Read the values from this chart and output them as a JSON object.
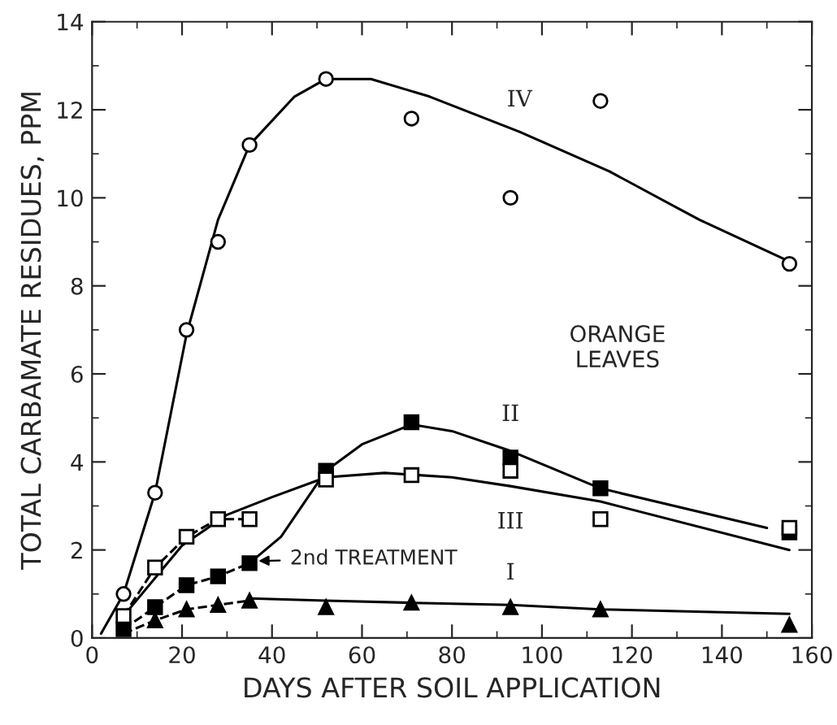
{
  "chart_data": {
    "type": "scatter",
    "xlabel": "DAYS AFTER SOIL APPLICATION",
    "ylabel": "TOTAL CARBAMATE RESIDUES, PPM",
    "xlim": [
      0,
      160
    ],
    "xticks": [
      0,
      20,
      40,
      60,
      80,
      100,
      120,
      140,
      160
    ],
    "ylim": [
      0,
      14
    ],
    "yticks": [
      0,
      2,
      4,
      6,
      8,
      10,
      12,
      14
    ],
    "grid": false,
    "legend": false,
    "series": [
      {
        "marker": "circle",
        "color": "#ffffff",
        "x": [
          7,
          14,
          21,
          28,
          35,
          52,
          71,
          93,
          113,
          155
        ],
        "values": [
          1.0,
          3.3,
          7.0,
          9.0,
          11.2,
          12.7,
          11.8,
          10.0,
          12.2,
          8.5
        ]
      },
      {
        "marker": "square",
        "color": "#ffffff",
        "x": [
          7,
          14,
          21,
          28,
          35,
          52,
          71,
          93,
          113,
          155
        ],
        "values": [
          0.5,
          1.6,
          2.3,
          2.7,
          2.7,
          3.6,
          3.7,
          3.8,
          2.7,
          2.5
        ]
      },
      {
        "marker": "square",
        "color": "#000000",
        "x": [
          7,
          14,
          21,
          28,
          35,
          52,
          71,
          93,
          113,
          155
        ],
        "values": [
          0.2,
          0.7,
          1.2,
          1.4,
          1.7,
          3.8,
          4.9,
          4.1,
          3.4,
          2.4
        ]
      },
      {
        "marker": "triangle",
        "color": "#000000",
        "x": [
          14,
          21,
          28,
          35,
          52,
          71,
          93,
          113,
          155
        ],
        "values": [
          0.4,
          0.65,
          0.75,
          0.85,
          0.7,
          0.8,
          0.7,
          0.65,
          0.3
        ]
      },
      {
        "type": "line",
        "name": "IV",
        "line_style": "solid",
        "color": "#000000",
        "x": [
          2,
          7,
          14,
          21,
          28,
          35,
          45,
          52,
          62,
          75,
          95,
          115,
          135,
          154
        ],
        "values": [
          0.1,
          1.0,
          3.3,
          6.9,
          9.5,
          11.2,
          12.3,
          12.7,
          12.7,
          12.3,
          11.5,
          10.6,
          9.5,
          8.6
        ]
      },
      {
        "type": "line",
        "line_style": "dashed",
        "color": "#000000",
        "x": [
          7,
          14,
          21,
          28,
          35
        ],
        "values": [
          0.5,
          1.6,
          2.3,
          2.7,
          2.7
        ]
      },
      {
        "type": "line",
        "name": "III",
        "line_style": "solid",
        "color": "#000000",
        "x": [
          7,
          20,
          30,
          40,
          52,
          65,
          80,
          93,
          113,
          155
        ],
        "values": [
          0.5,
          2.1,
          2.8,
          3.2,
          3.65,
          3.75,
          3.65,
          3.45,
          3.1,
          2.0
        ]
      },
      {
        "type": "line",
        "line_style": "dashed",
        "color": "#000000",
        "x": [
          7,
          14,
          21,
          28,
          35
        ],
        "values": [
          0.2,
          0.7,
          1.2,
          1.4,
          1.7
        ]
      },
      {
        "type": "line",
        "name": "II",
        "line_style": "solid",
        "color": "#000000",
        "x": [
          35,
          42,
          48,
          52,
          60,
          71,
          80,
          93,
          113,
          150
        ],
        "values": [
          1.7,
          2.3,
          3.2,
          3.8,
          4.4,
          4.85,
          4.7,
          4.25,
          3.4,
          2.5
        ]
      },
      {
        "type": "line",
        "line_style": "dashed",
        "color": "#000000",
        "x": [
          7,
          14,
          21,
          28,
          35
        ],
        "values": [
          0.1,
          0.4,
          0.65,
          0.75,
          0.85
        ]
      },
      {
        "type": "line",
        "name": "I",
        "line_style": "solid",
        "color": "#000000",
        "x": [
          35,
          52,
          71,
          93,
          113,
          155
        ],
        "values": [
          0.9,
          0.85,
          0.8,
          0.75,
          0.65,
          0.55
        ]
      }
    ],
    "annotations": [
      {
        "text": "2nd TREATMENT",
        "x": 36,
        "y": 1.75
      },
      "ORANGE\nLEAVES"
    ]
  }
}
